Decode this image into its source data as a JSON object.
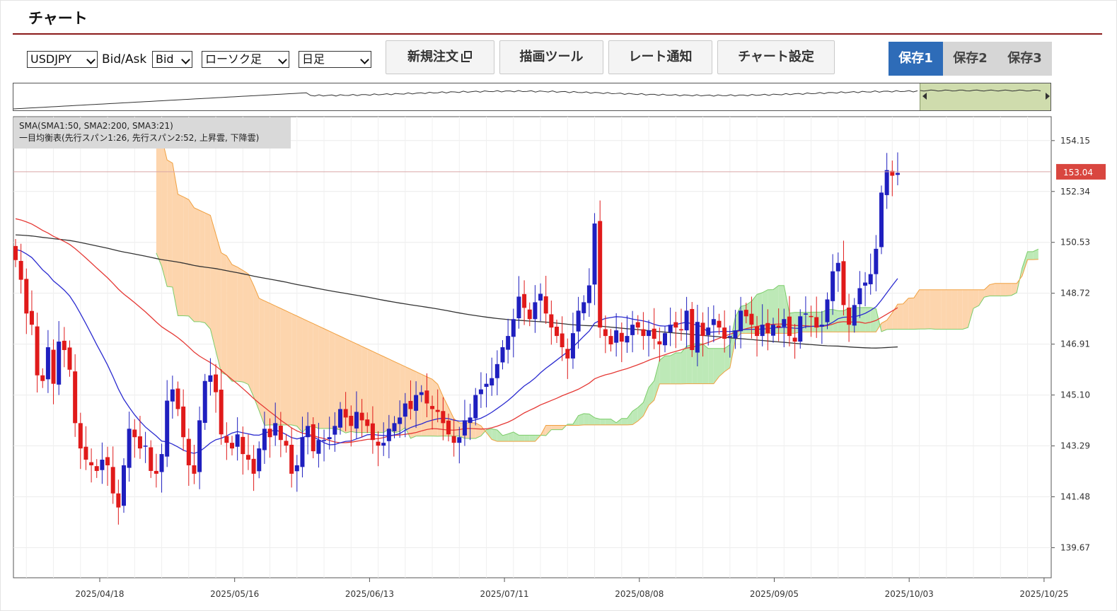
{
  "app": {
    "title": "チャート"
  },
  "toolbar": {
    "symbol": "USDJPY",
    "bidask_label": "Bid/Ask",
    "bidask_value": "Bid",
    "chart_type": "ローソク足",
    "period": "日足",
    "new_order": "新規注文",
    "drawing_tools": "描画ツール",
    "rate_alert": "レート通知",
    "chart_settings": "チャート設定"
  },
  "saves": [
    {
      "label": "保存1",
      "active": true
    },
    {
      "label": "保存2",
      "active": false
    },
    {
      "label": "保存3",
      "active": false
    }
  ],
  "legend": {
    "sma": "SMA(SMA1:50, SMA2:200, SMA3:21)",
    "ichimoku": "一目均衡表(先行スパン1:26, 先行スパン2:52, 上昇雲, 下降雲)"
  },
  "colors": {
    "up_candle": "#1f1fbf",
    "down_candle": "#e01a1a",
    "sma_long": "#333333",
    "sma_mid": "#e53935",
    "sma_short": "#2b2bd0",
    "cloud_down_fill": "#fdd5ad",
    "cloud_down_edge": "#f0a040",
    "cloud_up_fill": "#bde9b7",
    "cloud_up_edge": "#7ccd6a",
    "price_line": "#d9a6a6",
    "price_tag": "#d9463f",
    "accent": "#2e6cb8"
  },
  "chart_data": {
    "type": "candlestick",
    "symbol": "USDJPY",
    "current_price": "153.04",
    "y_ticks": [
      "154.15",
      "152.34",
      "150.53",
      "148.72",
      "146.91",
      "145.10",
      "143.29",
      "141.48",
      "139.67"
    ],
    "x_ticks": [
      "2025/04/18",
      "2025/05/16",
      "2025/06/13",
      "2025/07/11",
      "2025/08/08",
      "2025/09/05",
      "2025/10/03",
      "2025/10/25"
    ],
    "ylim": [
      138.6,
      155.0
    ],
    "closes": [
      149.9,
      149.2,
      148.0,
      147.6,
      145.8,
      145.6,
      146.8,
      145.5,
      147.0,
      146.7,
      146.0,
      144.1,
      143.2,
      142.8,
      142.6,
      142.4,
      142.8,
      142.6,
      141.6,
      141.1,
      142.6,
      143.9,
      143.6,
      143.2,
      143.3,
      142.4,
      142.3,
      143.0,
      144.9,
      145.3,
      144.6,
      143.6,
      142.6,
      142.3,
      144.2,
      145.6,
      145.8,
      145.2,
      143.7,
      143.4,
      143.2,
      143.7,
      143.0,
      142.8,
      142.3,
      143.2,
      143.9,
      143.6,
      144.1,
      143.5,
      143.3,
      142.3,
      142.6,
      143.6,
      144.0,
      143.1,
      143.5,
      143.5,
      143.6,
      144.0,
      144.6,
      144.3,
      144.0,
      144.5,
      144.2,
      144.0,
      143.5,
      143.3,
      143.4,
      143.9,
      144.1,
      144.3,
      144.8,
      144.6,
      145.1,
      145.2,
      144.8,
      144.6,
      144.5,
      144.1,
      143.7,
      143.4,
      143.6,
      144.2,
      144.3,
      145.1,
      145.3,
      145.5,
      145.7,
      146.2,
      146.8,
      147.2,
      147.8,
      148.6,
      148.2,
      147.8,
      148.4,
      148.7,
      148.0,
      147.5,
      147.2,
      146.8,
      146.4,
      147.3,
      148.1,
      148.4,
      149.0,
      151.2,
      147.5,
      147.2,
      146.9,
      147.4,
      147.0,
      147.2,
      147.6,
      147.5,
      147.2,
      147.4,
      147.1,
      146.9,
      147.3,
      147.6,
      147.5,
      147.4,
      148.1,
      146.7,
      147.7,
      147.2,
      147.5,
      147.8,
      147.5,
      147.1,
      147.2,
      147.4,
      148.1,
      147.9,
      147.6,
      147.2,
      147.6,
      147.3,
      147.6,
      147.5,
      147.8,
      147.2,
      147.0,
      147.9,
      148.0,
      147.9,
      147.5,
      147.6,
      148.5,
      149.5,
      149.8,
      148.3,
      147.6,
      148.3,
      148.9,
      149.1,
      149.4,
      150.3,
      152.3,
      153.1,
      152.9,
      153.0
    ]
  }
}
